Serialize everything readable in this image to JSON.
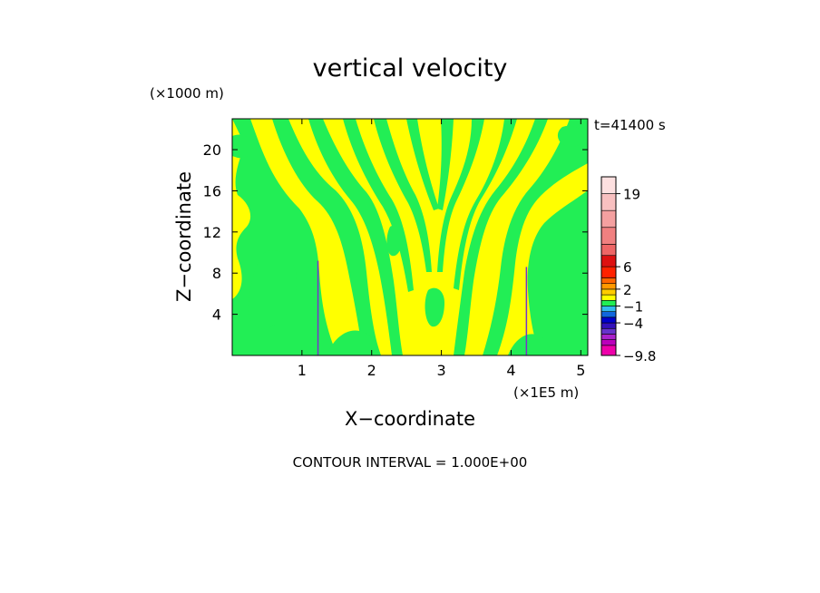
{
  "chart_data": {
    "type": "heatmap",
    "title": "vertical velocity",
    "xlabel": "X−coordinate",
    "ylabel": "Z−coordinate",
    "x_unit": "(×1E5 m)",
    "y_unit": "(×1000 m)",
    "time_label": "t=41400 s",
    "footer": "CONTOUR INTERVAL = 1.000E+00",
    "xlim": [
      0,
      5.1
    ],
    "ylim": [
      0,
      23
    ],
    "x_ticks": [
      "1",
      "2",
      "3",
      "4",
      "5"
    ],
    "y_ticks": [
      "4",
      "8",
      "12",
      "16",
      "20"
    ],
    "x_tick_values": [
      1,
      2,
      3,
      4,
      5
    ],
    "y_tick_values": [
      4,
      8,
      12,
      16,
      20
    ],
    "dominant_fill_colors": [
      "#ffff00",
      "#22ee55"
    ],
    "colorbar": {
      "labels": [
        "19",
        "6",
        "2",
        "−1",
        "−4",
        "−9.8"
      ],
      "label_values": [
        19,
        6,
        2,
        -1,
        -4,
        -9.8
      ],
      "range": [
        -9.8,
        22
      ],
      "bands": [
        {
          "from": -9.8,
          "to": -8,
          "color": "#ee00aa"
        },
        {
          "from": -8,
          "to": -7,
          "color": "#bb00bb"
        },
        {
          "from": -7,
          "to": -6,
          "color": "#aa22cc"
        },
        {
          "from": -6,
          "to": -5,
          "color": "#6633cc"
        },
        {
          "from": -5,
          "to": -4,
          "color": "#3311bb"
        },
        {
          "from": -4,
          "to": -3,
          "color": "#0000cc"
        },
        {
          "from": -3,
          "to": -2,
          "color": "#1166dd"
        },
        {
          "from": -2,
          "to": -1,
          "color": "#33bbee"
        },
        {
          "from": -1,
          "to": 0,
          "color": "#22ee55"
        },
        {
          "from": 0,
          "to": 1,
          "color": "#ffff00"
        },
        {
          "from": 1,
          "to": 2,
          "color": "#ffcc00"
        },
        {
          "from": 2,
          "to": 3,
          "color": "#ff9900"
        },
        {
          "from": 3,
          "to": 4,
          "color": "#ff6600"
        },
        {
          "from": 4,
          "to": 6,
          "color": "#ff2200"
        },
        {
          "from": 6,
          "to": 8,
          "color": "#dd1111"
        },
        {
          "from": 8,
          "to": 10,
          "color": "#ee6666"
        },
        {
          "from": 10,
          "to": 13,
          "color": "#f08080"
        },
        {
          "from": 13,
          "to": 16,
          "color": "#f4a0a0"
        },
        {
          "from": 16,
          "to": 19,
          "color": "#f8c0c0"
        },
        {
          "from": 19,
          "to": 22,
          "color": "#fde0e0"
        }
      ]
    },
    "lines": [
      {
        "x": 1.23,
        "z_top": 9.2,
        "color": "#7733cc"
      },
      {
        "x": 4.22,
        "z_top": 8.6,
        "color": "#7733cc"
      }
    ]
  }
}
